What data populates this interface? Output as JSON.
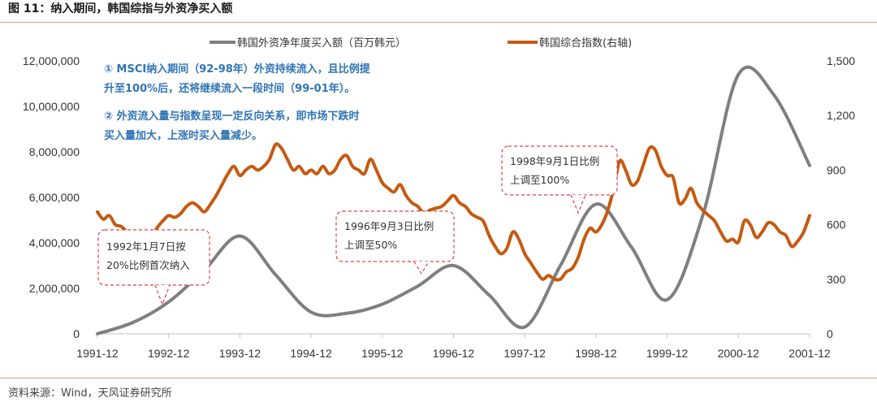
{
  "figure": {
    "title": "图 11：纳入期间，韩国综指与外资净买入额",
    "source": "资料来源：Wind，天风证券研究所"
  },
  "chart_data": {
    "type": "line",
    "x": [
      "1991-12",
      "1992-06",
      "1992-12",
      "1993-06",
      "1993-12",
      "1994-06",
      "1994-12",
      "1995-06",
      "1995-12",
      "1996-06",
      "1996-12",
      "1997-06",
      "1997-12",
      "1998-06",
      "1998-12",
      "1999-06",
      "1999-12",
      "2000-06",
      "2000-12",
      "2001-06",
      "2001-12"
    ],
    "x_tick_labels": [
      "1991-12",
      "1992-12",
      "1993-12",
      "1994-12",
      "1995-12",
      "1996-12",
      "1997-12",
      "1998-12",
      "1999-12",
      "2000-12",
      "2001-12"
    ],
    "y_left": {
      "ylim": [
        0,
        12000000
      ],
      "ticks": [
        "0",
        "2,000,000",
        "4,000,000",
        "6,000,000",
        "8,000,000",
        "10,000,000",
        "12,000,000"
      ]
    },
    "y_right": {
      "ylim": [
        0,
        1500
      ],
      "ticks": [
        "0",
        "300",
        "600",
        "900",
        "1,200",
        "1,500"
      ]
    },
    "series": [
      {
        "name": "韩国外资净年度买入额（百万韩元）",
        "axis": "left",
        "color": "#7f7f7f",
        "values": [
          0,
          500000,
          1400000,
          2800000,
          4300000,
          2600000,
          950000,
          900000,
          1300000,
          2100000,
          3000000,
          1700000,
          300000,
          3000000,
          5700000,
          3800000,
          1500000,
          5200000,
          11400000,
          10500000,
          7400000
        ]
      },
      {
        "name": "韩国综合指数(右轴)",
        "axis": "right",
        "color": "#c55a11",
        "points": [
          [
            "1991-12",
            670
          ],
          [
            "1992-01",
            630
          ],
          [
            "1992-02",
            650
          ],
          [
            "1992-03",
            600
          ],
          [
            "1992-04",
            590
          ],
          [
            "1992-05",
            560
          ],
          [
            "1992-06",
            540
          ],
          [
            "1992-07",
            515
          ],
          [
            "1992-08",
            490
          ],
          [
            "1992-09",
            520
          ],
          [
            "1992-10",
            580
          ],
          [
            "1992-11",
            620
          ],
          [
            "1992-12",
            650
          ],
          [
            "1993-01",
            640
          ],
          [
            "1993-02",
            660
          ],
          [
            "1993-03",
            700
          ],
          [
            "1993-04",
            720
          ],
          [
            "1993-05",
            700
          ],
          [
            "1993-06",
            670
          ],
          [
            "1993-07",
            710
          ],
          [
            "1993-08",
            760
          ],
          [
            "1993-09",
            820
          ],
          [
            "1993-10",
            880
          ],
          [
            "1993-11",
            920
          ],
          [
            "1993-12",
            870
          ],
          [
            "1994-01",
            900
          ],
          [
            "1994-02",
            920
          ],
          [
            "1994-03",
            900
          ],
          [
            "1994-04",
            920
          ],
          [
            "1994-05",
            960
          ],
          [
            "1994-06",
            1040
          ],
          [
            "1994-07",
            1020
          ],
          [
            "1994-08",
            960
          ],
          [
            "1994-09",
            900
          ],
          [
            "1994-10",
            920
          ],
          [
            "1994-11",
            880
          ],
          [
            "1994-12",
            900
          ],
          [
            "1995-01",
            880
          ],
          [
            "1995-02",
            920
          ],
          [
            "1995-03",
            880
          ],
          [
            "1995-04",
            900
          ],
          [
            "1995-05",
            960
          ],
          [
            "1995-06",
            980
          ],
          [
            "1995-07",
            920
          ],
          [
            "1995-08",
            900
          ],
          [
            "1995-09",
            880
          ],
          [
            "1995-10",
            960
          ],
          [
            "1995-11",
            900
          ],
          [
            "1995-12",
            830
          ],
          [
            "1996-01",
            800
          ],
          [
            "1996-02",
            780
          ],
          [
            "1996-03",
            820
          ],
          [
            "1996-04",
            760
          ],
          [
            "1996-05",
            720
          ],
          [
            "1996-06",
            700
          ],
          [
            "1996-07",
            660
          ],
          [
            "1996-08",
            680
          ],
          [
            "1996-09",
            690
          ],
          [
            "1996-10",
            700
          ],
          [
            "1996-11",
            730
          ],
          [
            "1996-12",
            760
          ],
          [
            "1997-01",
            720
          ],
          [
            "1997-02",
            700
          ],
          [
            "1997-03",
            660
          ],
          [
            "1997-04",
            640
          ],
          [
            "1997-05",
            620
          ],
          [
            "1997-06",
            540
          ],
          [
            "1997-07",
            480
          ],
          [
            "1997-08",
            440
          ],
          [
            "1997-09",
            470
          ],
          [
            "1997-10",
            560
          ],
          [
            "1997-11",
            520
          ],
          [
            "1997-12",
            440
          ],
          [
            "1998-01",
            390
          ],
          [
            "1998-02",
            340
          ],
          [
            "1998-03",
            300
          ],
          [
            "1998-04",
            320
          ],
          [
            "1998-05",
            300
          ],
          [
            "1998-06",
            300
          ],
          [
            "1998-07",
            340
          ],
          [
            "1998-08",
            360
          ],
          [
            "1998-09",
            420
          ],
          [
            "1998-10",
            520
          ],
          [
            "1998-11",
            580
          ],
          [
            "1998-12",
            560
          ],
          [
            "1999-01",
            600
          ],
          [
            "1999-02",
            680
          ],
          [
            "1999-03",
            800
          ],
          [
            "1999-04",
            950
          ],
          [
            "1999-05",
            900
          ],
          [
            "1999-06",
            820
          ],
          [
            "1999-07",
            840
          ],
          [
            "1999-08",
            930
          ],
          [
            "1999-09",
            1020
          ],
          [
            "1999-10",
            1010
          ],
          [
            "1999-11",
            920
          ],
          [
            "1999-12",
            870
          ],
          [
            "2000-01",
            860
          ],
          [
            "2000-02",
            720
          ],
          [
            "2000-03",
            740
          ],
          [
            "2000-04",
            800
          ],
          [
            "2000-05",
            720
          ],
          [
            "2000-06",
            680
          ],
          [
            "2000-07",
            650
          ],
          [
            "2000-08",
            620
          ],
          [
            "2000-09",
            560
          ],
          [
            "2000-10",
            510
          ],
          [
            "2000-11",
            520
          ],
          [
            "2000-12",
            505
          ],
          [
            "2001-01",
            620
          ],
          [
            "2001-02",
            600
          ],
          [
            "2001-03",
            530
          ],
          [
            "2001-04",
            560
          ],
          [
            "2001-05",
            610
          ],
          [
            "2001-06",
            600
          ],
          [
            "2001-07",
            560
          ],
          [
            "2001-08",
            540
          ],
          [
            "2001-09",
            480
          ],
          [
            "2001-10",
            510
          ],
          [
            "2001-11",
            560
          ],
          [
            "2001-12",
            650
          ]
        ]
      }
    ],
    "notes": [
      "① MSCI纳入期间（92-98年）外资持续流入，且比例提",
      "升至100%后，还将继续流入一段时间（99-01年）。",
      "② 外资流入量与指数呈现一定反向关系，即市场下跌时",
      "买入量加大，上涨时买入量减少。"
    ],
    "callouts": [
      {
        "lines": [
          "1992年1月7日按",
          "20%比例首次纳入"
        ],
        "anchor": "1992-12",
        "anchor_value": 1300000
      },
      {
        "lines": [
          "1996年9月3日比例",
          "上调至50%"
        ],
        "anchor": "1996-06",
        "anchor_value": 2700000
      },
      {
        "lines": [
          "1998年9月1日比例",
          "上调至100%"
        ],
        "anchor": "1998-09",
        "anchor_value": 5400000
      }
    ],
    "grid": false,
    "legend_position": "top"
  }
}
